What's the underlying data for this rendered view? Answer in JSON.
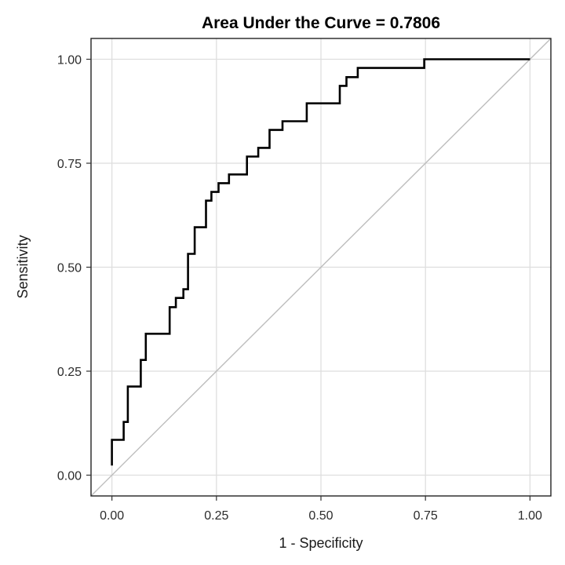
{
  "chart_data": {
    "type": "line",
    "title": "Area Under the Curve = 0.7806",
    "xlabel": "1 - Specificity",
    "ylabel": "Sensitivity",
    "xlim": [
      -0.05,
      1.05
    ],
    "ylim": [
      -0.05,
      1.05
    ],
    "x_ticks": [
      "0.00",
      "0.25",
      "0.50",
      "0.75",
      "1.00"
    ],
    "y_ticks": [
      "0.00",
      "0.25",
      "0.50",
      "0.75",
      "1.00"
    ],
    "grid": true,
    "reference_line": {
      "x": [
        0,
        1
      ],
      "y": [
        0,
        1
      ],
      "color": "#bdbdbd"
    },
    "series": [
      {
        "color": "#000000",
        "x": [
          0.0,
          0.0,
          0.028,
          0.028,
          0.038,
          0.038,
          0.069,
          0.069,
          0.081,
          0.081,
          0.138,
          0.138,
          0.153,
          0.153,
          0.171,
          0.171,
          0.182,
          0.182,
          0.198,
          0.198,
          0.225,
          0.225,
          0.238,
          0.238,
          0.255,
          0.255,
          0.28,
          0.28,
          0.323,
          0.323,
          0.35,
          0.35,
          0.377,
          0.377,
          0.408,
          0.408,
          0.466,
          0.466,
          0.545,
          0.545,
          0.561,
          0.561,
          0.588,
          0.588,
          0.747,
          0.747,
          1.0
        ],
        "y": [
          0.023,
          0.085,
          0.085,
          0.128,
          0.128,
          0.213,
          0.213,
          0.277,
          0.277,
          0.34,
          0.34,
          0.404,
          0.404,
          0.426,
          0.426,
          0.447,
          0.447,
          0.532,
          0.532,
          0.596,
          0.596,
          0.66,
          0.66,
          0.681,
          0.681,
          0.702,
          0.702,
          0.723,
          0.723,
          0.766,
          0.766,
          0.787,
          0.787,
          0.83,
          0.83,
          0.851,
          0.851,
          0.894,
          0.894,
          0.936,
          0.936,
          0.957,
          0.957,
          0.979,
          0.979,
          1.0,
          1.0
        ]
      }
    ]
  }
}
